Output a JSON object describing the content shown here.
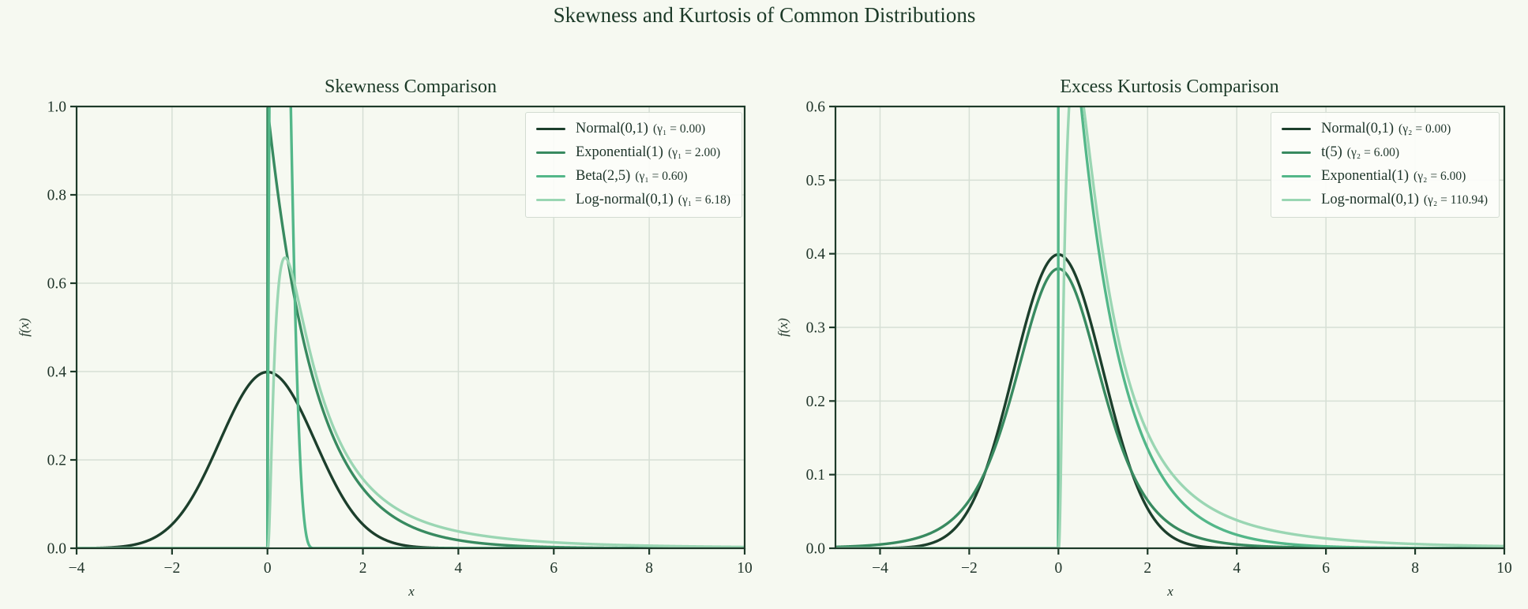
{
  "figure": {
    "title": "Skewness and Kurtosis of Common Distributions"
  },
  "colors": {
    "background": "#f6f9f1",
    "grid": "#d6dfd5",
    "axis": "#1d3a29",
    "text": "#20352a",
    "legend_background": "#fcfdfa",
    "legend_border": "#d3dcd2"
  },
  "chart_data": [
    {
      "type": "line",
      "title": "Skewness Comparison",
      "xlabel": "x",
      "ylabel": "f(x)",
      "xlim": [
        -4,
        10
      ],
      "ylim": [
        0,
        1.0
      ],
      "xticks": [
        -4,
        -2,
        0,
        2,
        4,
        6,
        8,
        10
      ],
      "xtick_labels": [
        "−4",
        "−2",
        "0",
        "2",
        "4",
        "6",
        "8",
        "10"
      ],
      "yticks": [
        0.0,
        0.2,
        0.4,
        0.6,
        0.8,
        1.0
      ],
      "ytick_labels": [
        "0.0",
        "0.2",
        "0.4",
        "0.6",
        "0.8",
        "1.0"
      ],
      "grid": true,
      "legend_position": "upper right",
      "statistic": "skewness γ₁",
      "series": [
        {
          "label": "Normal(0,1)",
          "stat": "(γ₁ = 0.00)",
          "statistic_value": 0.0,
          "dist": "normal",
          "params": {
            "mu": 0,
            "sigma": 1
          },
          "color": "#1c3f2c"
        },
        {
          "label": "Exponential(1)",
          "stat": "(γ₁ = 2.00)",
          "statistic_value": 2.0,
          "dist": "exponential",
          "params": {
            "rate": 1
          },
          "color": "#388a60"
        },
        {
          "label": "Beta(2,5)",
          "stat": "(γ₁ = 0.60)",
          "statistic_value": 0.6,
          "dist": "beta25",
          "params": {
            "a": 2,
            "b": 5
          },
          "color": "#53b789"
        },
        {
          "label": "Log-normal(0,1)",
          "stat": "(γ₁ = 6.18)",
          "statistic_value": 6.18,
          "dist": "lognormal",
          "params": {
            "mu": 0,
            "sigma": 1
          },
          "color": "#9ad6b3"
        }
      ]
    },
    {
      "type": "line",
      "title": "Excess Kurtosis Comparison",
      "xlabel": "x",
      "ylabel": "f(x)",
      "xlim": [
        -5,
        10
      ],
      "ylim": [
        0,
        0.6
      ],
      "xticks": [
        -4,
        -2,
        0,
        2,
        4,
        6,
        8,
        10
      ],
      "xtick_labels": [
        "−4",
        "−2",
        "0",
        "2",
        "4",
        "6",
        "8",
        "10"
      ],
      "yticks": [
        0.0,
        0.1,
        0.2,
        0.3,
        0.4,
        0.5,
        0.6
      ],
      "ytick_labels": [
        "0.0",
        "0.1",
        "0.2",
        "0.3",
        "0.4",
        "0.5",
        "0.6"
      ],
      "grid": true,
      "legend_position": "upper right",
      "statistic": "excess kurtosis γ₂",
      "series": [
        {
          "label": "Normal(0,1)",
          "stat": "(γ₂ = 0.00)",
          "statistic_value": 0.0,
          "dist": "normal",
          "params": {
            "mu": 0,
            "sigma": 1
          },
          "color": "#1c3f2c"
        },
        {
          "label": "t(5)",
          "stat": "(γ₂ = 6.00)",
          "statistic_value": 6.0,
          "dist": "t5",
          "params": {
            "df": 5
          },
          "color": "#388a60"
        },
        {
          "label": "Exponential(1)",
          "stat": "(γ₂ = 6.00)",
          "statistic_value": 6.0,
          "dist": "exponential",
          "params": {
            "rate": 1
          },
          "color": "#53b789"
        },
        {
          "label": "Log-normal(0,1)",
          "stat": "(γ₂ = 110.94)",
          "statistic_value": 110.94,
          "dist": "lognormal",
          "params": {
            "mu": 0,
            "sigma": 1
          },
          "color": "#9ad6b3"
        }
      ]
    }
  ]
}
